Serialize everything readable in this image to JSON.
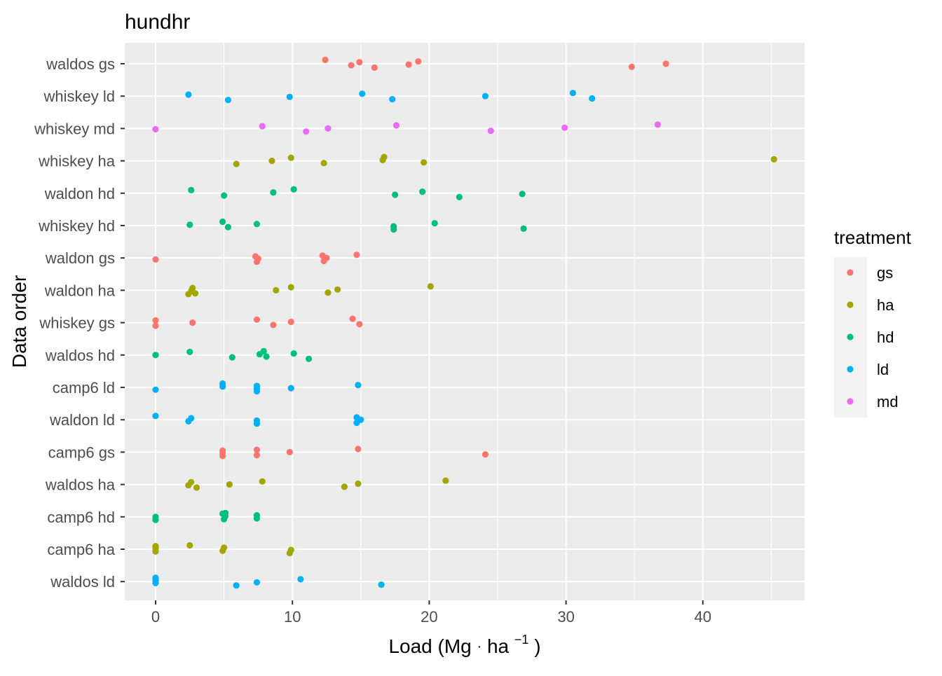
{
  "chart_data": {
    "type": "scatter",
    "title": "hundhr",
    "xlabel_main": "Load (Mg",
    "xlabel_unit": "ha",
    "xlabel_exp": "−1",
    "xlabel_close": ")",
    "ylabel": "Data order",
    "xlim": [
      -2.3,
      47.5
    ],
    "x_ticks": [
      0,
      10,
      20,
      30,
      40
    ],
    "grid": true,
    "categories": [
      "waldos gs",
      "whiskey ld",
      "whiskey md",
      "whiskey ha",
      "waldon hd",
      "whiskey hd",
      "waldon gs",
      "waldon ha",
      "whiskey gs",
      "waldos hd",
      "camp6 ld",
      "waldon ld",
      "camp6 gs",
      "waldos ha",
      "camp6 hd",
      "camp6 ha",
      "waldos ld"
    ],
    "legend": {
      "title": "treatment",
      "position": "right",
      "entries": [
        {
          "label": "gs",
          "color": "#F8766D"
        },
        {
          "label": "ha",
          "color": "#A3A500"
        },
        {
          "label": "hd",
          "color": "#00BF7D"
        },
        {
          "label": "ld",
          "color": "#00B0F6"
        },
        {
          "label": "md",
          "color": "#E76BF3"
        }
      ]
    },
    "series": [
      {
        "name": "gs",
        "category_index": 0,
        "x": [
          12.4,
          14.3,
          14.9,
          16.0,
          18.5,
          19.2,
          34.8,
          37.3
        ]
      },
      {
        "name": "ld",
        "category_index": 1,
        "x": [
          2.4,
          5.3,
          9.8,
          15.1,
          17.3,
          24.1,
          30.5,
          31.9
        ]
      },
      {
        "name": "md",
        "category_index": 2,
        "x": [
          0.0,
          7.8,
          11.0,
          12.6,
          17.6,
          24.5,
          29.9,
          36.7
        ]
      },
      {
        "name": "ha",
        "category_index": 3,
        "x": [
          5.9,
          8.5,
          9.9,
          12.3,
          16.6,
          16.7,
          19.6,
          45.2
        ]
      },
      {
        "name": "hd",
        "category_index": 4,
        "x": [
          2.6,
          5.0,
          8.6,
          10.1,
          17.5,
          19.5,
          22.2,
          26.8
        ]
      },
      {
        "name": "hd",
        "category_index": 5,
        "x": [
          2.5,
          4.9,
          5.3,
          7.4,
          17.4,
          17.4,
          20.4,
          26.9
        ]
      },
      {
        "name": "gs",
        "category_index": 6,
        "x": [
          0.0,
          7.3,
          7.4,
          7.5,
          12.2,
          12.3,
          12.5,
          14.7
        ]
      },
      {
        "name": "ha",
        "category_index": 7,
        "x": [
          2.4,
          2.6,
          2.7,
          2.9,
          8.8,
          9.9,
          12.6,
          13.3,
          20.1
        ]
      },
      {
        "name": "gs",
        "category_index": 8,
        "x": [
          0.0,
          0.0,
          2.7,
          7.4,
          8.6,
          9.9,
          14.4,
          14.9
        ]
      },
      {
        "name": "hd",
        "category_index": 9,
        "x": [
          0.0,
          2.5,
          5.6,
          7.6,
          7.9,
          8.1,
          10.1,
          11.2
        ]
      },
      {
        "name": "ld",
        "category_index": 10,
        "x": [
          0.0,
          4.9,
          4.9,
          7.4,
          7.4,
          7.4,
          9.9,
          14.8
        ]
      },
      {
        "name": "ld",
        "category_index": 11,
        "x": [
          0.0,
          2.4,
          2.6,
          7.4,
          7.4,
          14.7,
          14.7,
          15.0
        ]
      },
      {
        "name": "gs",
        "category_index": 12,
        "x": [
          4.9,
          4.9,
          4.9,
          7.4,
          7.4,
          9.8,
          14.8,
          24.1
        ]
      },
      {
        "name": "ha",
        "category_index": 13,
        "x": [
          2.4,
          2.6,
          3.0,
          5.4,
          7.8,
          13.8,
          14.8,
          21.2
        ]
      },
      {
        "name": "hd",
        "category_index": 14,
        "x": [
          0.0,
          0.0,
          4.9,
          5.0,
          5.1,
          5.1,
          7.4,
          7.4
        ]
      },
      {
        "name": "ha",
        "category_index": 15,
        "x": [
          0.0,
          0.0,
          0.0,
          2.5,
          4.9,
          5.0,
          9.8,
          9.9
        ]
      },
      {
        "name": "ld",
        "category_index": 16,
        "x": [
          0.0,
          0.0,
          0.0,
          0.0,
          5.9,
          7.4,
          10.6,
          16.5
        ]
      }
    ]
  }
}
